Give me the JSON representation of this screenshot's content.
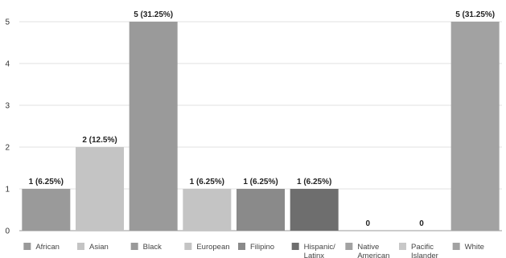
{
  "chart_data": {
    "type": "bar",
    "categories": [
      "African",
      "Asian",
      "Black",
      "European",
      "Filipino",
      "Hispanic/\nLatinx",
      "Native\nAmerican",
      "Pacific\nIslander",
      "White"
    ],
    "values": [
      1,
      2,
      5,
      1,
      1,
      1,
      0,
      0,
      5
    ],
    "data_labels": [
      "1 (6.25%)",
      "2 (12.5%)",
      "5 (31.25%)",
      "1 (6.25%)",
      "1 (6.25%)",
      "1 (6.25%)",
      "0",
      "0",
      "5 (31.25%)"
    ],
    "colors": [
      "#9a9a9a",
      "#c4c4c4",
      "#9a9a9a",
      "#c4c4c4",
      "#8a8a8a",
      "#6e6e6e",
      "#a2a2a2",
      "#c8c8c8",
      "#a2a2a2"
    ],
    "ylim": [
      0,
      5
    ],
    "yticks": [
      0,
      1,
      2,
      3,
      4,
      5
    ],
    "grid": true,
    "legend": "bottom",
    "title": "",
    "xlabel": "",
    "ylabel": ""
  }
}
